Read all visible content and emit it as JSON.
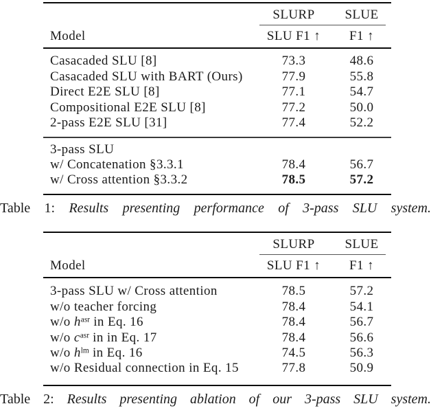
{
  "colors": {
    "background": "#ffffff",
    "text": "#1b1b1b",
    "rule_heavy": "#0a0a0a",
    "rule_light": "#3a3a3a",
    "rule_cmid": "#555555"
  },
  "tables": [
    {
      "col_group_headers": [
        "SLURP",
        "SLUE"
      ],
      "col_headers": {
        "model": "Model",
        "slurp": "SLU F1 ↑",
        "slue": "F1 ↑"
      },
      "sections": [
        {
          "rows": [
            {
              "model": [
                {
                  "t": "text",
                  "v": "Casacaded SLU [8]"
                }
              ],
              "slurp": "73.3",
              "slue": "48.6",
              "bold": false
            },
            {
              "model": [
                {
                  "t": "text",
                  "v": "Casacaded SLU with BART (Ours)"
                }
              ],
              "slurp": "77.9",
              "slue": "55.8",
              "bold": false
            },
            {
              "model": [
                {
                  "t": "text",
                  "v": "Direct E2E SLU [8]"
                }
              ],
              "slurp": "77.1",
              "slue": "54.7",
              "bold": false
            },
            {
              "model": [
                {
                  "t": "text",
                  "v": "Compositional E2E SLU [8]"
                }
              ],
              "slurp": "77.2",
              "slue": "50.0",
              "bold": false
            },
            {
              "model": [
                {
                  "t": "text",
                  "v": "2-pass E2E SLU [31]"
                }
              ],
              "slurp": "77.4",
              "slue": "52.2",
              "bold": false
            }
          ]
        },
        {
          "rows": [
            {
              "model": [
                {
                  "t": "text",
                  "v": "3-pass SLU"
                }
              ],
              "slurp": "",
              "slue": "",
              "bold": false
            },
            {
              "model": [
                {
                  "t": "text",
                  "v": "w/ Concatenation §3.3.1"
                }
              ],
              "slurp": "78.4",
              "slue": "56.7",
              "bold": false
            },
            {
              "model": [
                {
                  "t": "text",
                  "v": "w/ Cross attention §3.3.2"
                }
              ],
              "slurp": "78.5",
              "slue": "57.2",
              "bold": true
            }
          ]
        }
      ],
      "caption": {
        "label": "Table 1:",
        "text": "Results presenting performance of 3-pass SLU system."
      }
    },
    {
      "col_group_headers": [
        "SLURP",
        "SLUE"
      ],
      "col_headers": {
        "model": "Model",
        "slurp": "SLU F1 ↑",
        "slue": "F1 ↑"
      },
      "sections": [
        {
          "rows": [
            {
              "model": [
                {
                  "t": "text",
                  "v": "3-pass SLU w/ Cross attention"
                }
              ],
              "slurp": "78.5",
              "slue": "57.2",
              "bold": false
            },
            {
              "model": [
                {
                  "t": "text",
                  "v": "w/o teacher forcing"
                }
              ],
              "slurp": "78.4",
              "slue": "54.1",
              "bold": false
            },
            {
              "model": [
                {
                  "t": "text",
                  "v": "w/o "
                },
                {
                  "t": "var",
                  "v": "h"
                },
                {
                  "t": "sup",
                  "v": "asr"
                },
                {
                  "t": "text",
                  "v": " in Eq. 16"
                }
              ],
              "slurp": "78.4",
              "slue": "56.7",
              "bold": false
            },
            {
              "model": [
                {
                  "t": "text",
                  "v": "w/o "
                },
                {
                  "t": "var",
                  "v": "c"
                },
                {
                  "t": "sup",
                  "v": "asr"
                },
                {
                  "t": "text",
                  "v": " in in Eq. 17"
                }
              ],
              "slurp": "78.4",
              "slue": "56.6",
              "bold": false
            },
            {
              "model": [
                {
                  "t": "text",
                  "v": "w/o "
                },
                {
                  "t": "var",
                  "v": "h"
                },
                {
                  "t": "sup",
                  "v": "lm"
                },
                {
                  "t": "text",
                  "v": " in Eq. 16"
                }
              ],
              "slurp": "74.5",
              "slue": "56.3",
              "bold": false
            },
            {
              "model": [
                {
                  "t": "text",
                  "v": "w/o Residual connection in Eq. 15"
                }
              ],
              "slurp": "77.8",
              "slue": "50.9",
              "bold": false
            }
          ]
        }
      ],
      "caption": {
        "label": "Table 2:",
        "text": "Results presenting ablation of our 3-pass SLU system."
      }
    }
  ]
}
